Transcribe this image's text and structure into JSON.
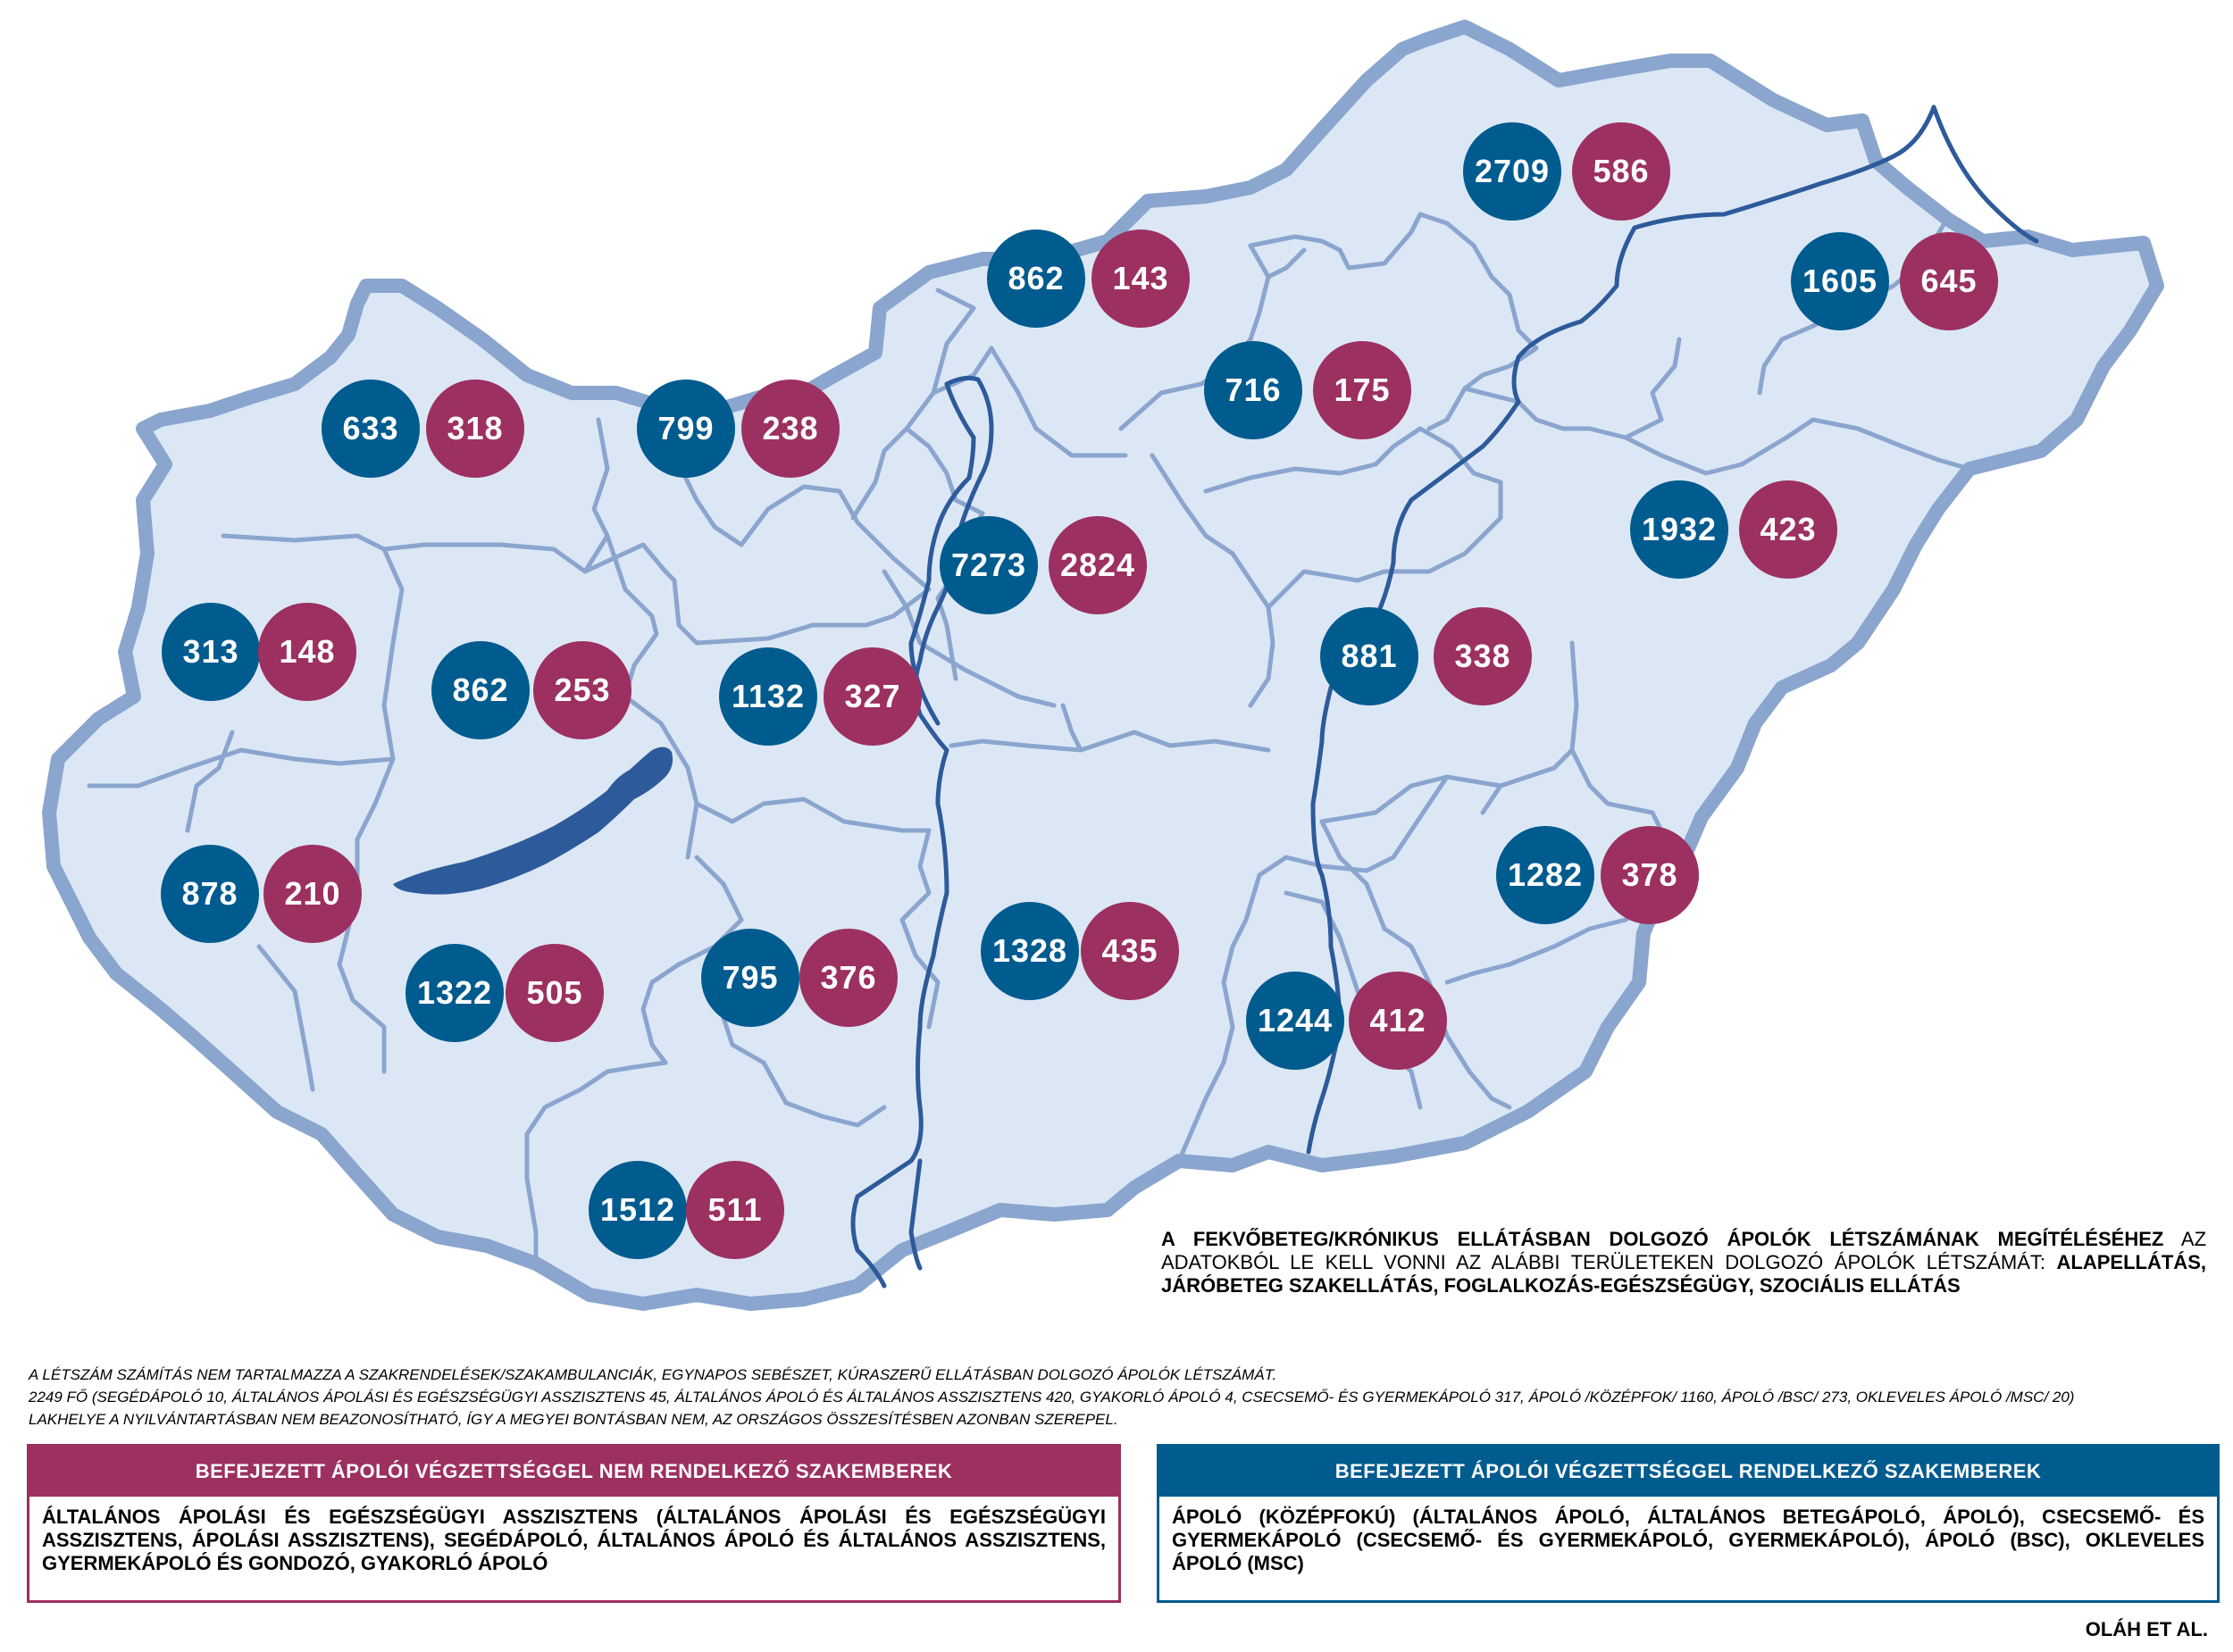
{
  "colors": {
    "qualified": "#005b8f",
    "not_qualified": "#9c3060",
    "land_fill": "#dce7f5",
    "border": "#8aa5ce",
    "river": "#2d5a9a",
    "lake": "#2d5a9a"
  },
  "counties": [
    {
      "qualified": "633",
      "not_qualified": "318"
    },
    {
      "qualified": "799",
      "not_qualified": "238"
    },
    {
      "qualified": "862",
      "not_qualified": "143"
    },
    {
      "qualified": "2709",
      "not_qualified": "586"
    },
    {
      "qualified": "1605",
      "not_qualified": "645"
    },
    {
      "qualified": "716",
      "not_qualified": "175"
    },
    {
      "qualified": "7273",
      "not_qualified": "2824"
    },
    {
      "qualified": "1932",
      "not_qualified": "423"
    },
    {
      "qualified": "313",
      "not_qualified": "148"
    },
    {
      "qualified": "862",
      "not_qualified": "253"
    },
    {
      "qualified": "1132",
      "not_qualified": "327"
    },
    {
      "qualified": "881",
      "not_qualified": "338"
    },
    {
      "qualified": "878",
      "not_qualified": "210"
    },
    {
      "qualified": "1322",
      "not_qualified": "505"
    },
    {
      "qualified": "795",
      "not_qualified": "376"
    },
    {
      "qualified": "1328",
      "not_qualified": "435"
    },
    {
      "qualified": "1282",
      "not_qualified": "378"
    },
    {
      "qualified": "1244",
      "not_qualified": "412"
    },
    {
      "qualified": "1512",
      "not_qualified": "511"
    }
  ],
  "note": {
    "part1": "A FEKVŐBETEG/KRÓNIKUS ELLÁTÁSBAN DOLGOZÓ ÁPOLÓK LÉTSZÁMÁNAK MEGÍTÉLÉSÉHEZ",
    "part2": " AZ ADATOKBÓL LE KELL VONNI AZ ALÁBBI TERÜLETEKEN DOLGOZÓ ÁPOLÓK LÉTSZÁMÁT: ",
    "part3": "ALAPELLÁTÁS, JÁRÓBETEG SZAKELLÁTÁS, FOGLALKOZÁS-EGÉSZSÉGÜGY, SZOCIÁLIS ELLÁTÁS"
  },
  "fine_print": [
    "A LÉTSZÁM SZÁMÍTÁS NEM TARTALMAZZA A SZAKRENDELÉSEK/SZAKAMBULANCIÁK, EGYNAPOS SEBÉSZET, KÚRASZERŰ ELLÁTÁSBAN DOLGOZÓ ÁPOLÓK LÉTSZÁMÁT.",
    "2249 FŐ (SEGÉDÁPOLÓ 10, ÁLTALÁNOS ÁPOLÁSI ÉS EGÉSZSÉGÜGYI ASSZISZTENS 45, ÁLTALÁNOS ÁPOLÓ ÉS ÁLTALÁNOS ASSZISZTENS 420, GYAKORLÓ ÁPOLÓ 4, CSECSEMŐ- ÉS GYERMEKÁPOLÓ 317, ÁPOLÓ /KÖZÉPFOK/ 1160, ÁPOLÓ /BSC/ 273, OKLEVELES ÁPOLÓ /MSC/ 20)",
    "LAKHELYE A NYILVÁNTARTÁSBAN NEM BEAZONOSÍTHATÓ, ÍGY A MEGYEI BONTÁSBAN NEM, AZ ORSZÁGOS ÖSSZESÍTÉSBEN AZONBAN SZEREPEL."
  ],
  "legend_not_qualified": {
    "title": "BEFEJEZETT ÁPOLÓI VÉGZETTSÉGGEL NEM RENDELKEZŐ SZAKEMBEREK",
    "body": "ÁLTALÁNOS ÁPOLÁSI ÉS EGÉSZSÉGÜGYI ASSZISZTENS (ÁLTALÁNOS ÁPOLÁSI ÉS EGÉSZSÉGÜGYI ASSZISZTENS, ÁPOLÁSI ASSZISZTENS), SEGÉDÁPOLÓ, ÁLTALÁNOS ÁPOLÓ ÉS ÁLTALÁNOS ASSZISZTENS, GYERMEKÁPOLÓ ÉS GONDOZÓ, GYAKORLÓ ÁPOLÓ"
  },
  "legend_qualified": {
    "title": "BEFEJEZETT ÁPOLÓI VÉGZETTSÉGGEL RENDELKEZŐ SZAKEMBEREK",
    "body": "ÁPOLÓ (KÖZÉPFOKÚ) (ÁLTALÁNOS ÁPOLÓ, ÁLTALÁNOS BETEGÁPOLÓ, ÁPOLÓ), CSECSEMŐ- ÉS GYERMEKÁPOLÓ (CSECSEMŐ- ÉS GYERMEKÁPOLÓ, GYERMEKÁPOLÓ), ÁPOLÓ (BSC), OKLEVELES ÁPOLÓ (MSC)"
  },
  "credit": "OLÁH ET AL."
}
